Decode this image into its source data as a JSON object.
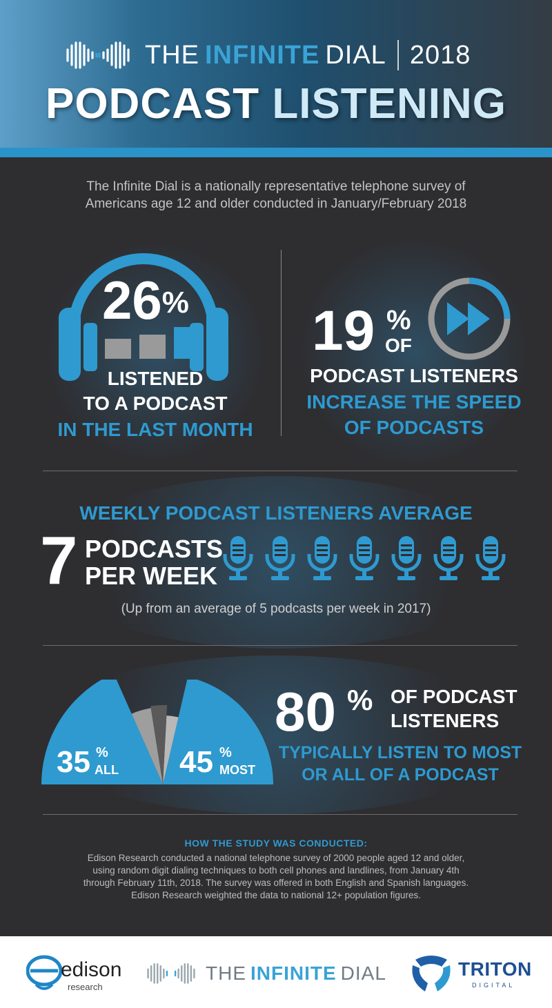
{
  "header": {
    "brand_part1": "THE",
    "brand_part2": "INFINITE",
    "brand_part3": "DIAL",
    "year": "2018",
    "title_part1": "PODCAST",
    "title_part2": "LISTENING"
  },
  "intro": {
    "line1": "The Infinite Dial is a nationally representative telephone survey of",
    "line2": "Americans age 12 and older conducted in January/February 2018"
  },
  "stat_monthly": {
    "value": "26",
    "pct": "%",
    "line1": "LISTENED",
    "line2": "TO A PODCAST",
    "line3": "IN THE LAST MONTH"
  },
  "stat_speed": {
    "value": "19",
    "pct": "%",
    "of": "OF",
    "line1": "PODCAST LISTENERS",
    "line2": "INCREASE THE SPEED",
    "line3": "OF PODCASTS"
  },
  "weekly": {
    "heading": "WEEKLY PODCAST  LISTENERS AVERAGE",
    "number": "7",
    "line1": "PODCASTS",
    "line2": "PER WEEK",
    "note": "(Up from an average of 5 podcasts per week in 2017)"
  },
  "listen_through": {
    "value": "80",
    "pct": "%",
    "right1": "OF PODCAST",
    "right2": "LISTENERS",
    "blue1": "TYPICALLY LISTEN TO MOST",
    "blue2": "OR ALL OF A PODCAST"
  },
  "method": {
    "heading": "HOW THE STUDY WAS CONDUCTED:",
    "line1": "Edison Research conducted a national telephone survey of 2000 people aged 12 and older,",
    "line2": "using random digit dialing techniques to both cell phones and landlines, from January 4th",
    "line3": "through February 11th, 2018. The survey was offered in both English and Spanish languages.",
    "line4": "Edison Research weighted the data to national 12+ population figures."
  },
  "footer": {
    "edison_name": "edison",
    "edison_sub": "research",
    "dial_part1": "THE",
    "dial_part2": "INFINITE",
    "dial_part3": "DIAL",
    "triton_name": "TRITON",
    "triton_sub": "DIGITAL"
  },
  "colors": {
    "accent": "#2e9ad0",
    "background": "#2e2d30",
    "gray": "#9e9e9e"
  },
  "chart_data": [
    {
      "type": "pie",
      "title": "",
      "categories": [
        "ALL",
        "MOST",
        "Other"
      ],
      "values": [
        35,
        45,
        20
      ],
      "labels": [
        "35%",
        "45%",
        ""
      ],
      "unit": "%"
    },
    {
      "type": "bar",
      "title": "",
      "categories": [
        "2017",
        "2018"
      ],
      "values": [
        5,
        7
      ],
      "ylabel": "Podcasts per week"
    }
  ]
}
